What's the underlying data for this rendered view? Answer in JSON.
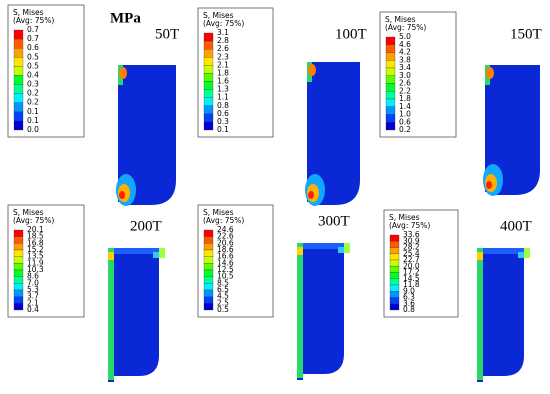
{
  "unit": "MPa",
  "panels": [
    {
      "label": "50T",
      "legend": {
        "title": "S, Mises",
        "avg": "(Avg: 75%)",
        "levels": [
          "0.7",
          "0.7",
          "0.6",
          "0.5",
          "0.5",
          "0.4",
          "0.3",
          "0.2",
          "0.2",
          "0.1",
          "0.1",
          "0.0"
        ]
      }
    },
    {
      "label": "100T",
      "legend": {
        "title": "S, Mises",
        "avg": "(Avg: 75%)",
        "levels": [
          "3.1",
          "2.8",
          "2.6",
          "2.3",
          "2.1",
          "1.8",
          "1.6",
          "1.3",
          "1.1",
          "0.8",
          "0.6",
          "0.3",
          "0.1"
        ]
      }
    },
    {
      "label": "150T",
      "legend": {
        "title": "S, Mises",
        "avg": "(Avg: 75%)",
        "levels": [
          "5.0",
          "4.6",
          "4.2",
          "3.8",
          "3.4",
          "3.0",
          "2.6",
          "2.2",
          "1.8",
          "1.4",
          "1.0",
          "0.6",
          "0.2"
        ]
      }
    },
    {
      "label": "200T",
      "legend": {
        "title": "S, Mises",
        "avg": "(Avg: 75%)",
        "levels": [
          "20.1",
          "18.5",
          "16.8",
          "15.2",
          "13.5",
          "11.9",
          "10.3",
          "8.6",
          "7.0",
          "5.3",
          "3.7",
          "2.1",
          "0.4"
        ]
      }
    },
    {
      "label": "300T",
      "legend": {
        "title": "S, Mises",
        "avg": "(Avg: 75%)",
        "levels": [
          "24.6",
          "22.6",
          "20.6",
          "18.6",
          "16.6",
          "14.6",
          "12.5",
          "10.5",
          "8.5",
          "6.5",
          "4.5",
          "2.5",
          "0.5"
        ]
      }
    },
    {
      "label": "400T",
      "legend": {
        "title": "S, Mises",
        "avg": "(Avg: 75%)",
        "levels": [
          "33.6",
          "30.9",
          "28.2",
          "25.4",
          "22.7",
          "20.0",
          "17.2",
          "14.5",
          "11.8",
          "9.0",
          "6.3",
          "3.6",
          "0.8"
        ]
      }
    }
  ]
}
